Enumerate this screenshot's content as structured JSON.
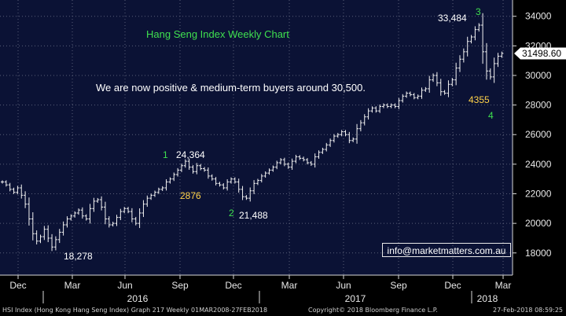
{
  "chart_data": {
    "type": "ohlc",
    "title": "Hang Seng Index Weekly Chart",
    "note": "We are now positive & medium-term buyers around 30,500.",
    "ylim": [
      16500,
      35100
    ],
    "y_ticks": [
      18000,
      20000,
      22000,
      24000,
      26000,
      28000,
      30000,
      32000,
      34000
    ],
    "y_tick_labels": [
      "18000",
      "20000",
      "22000",
      "24000",
      "26000",
      "28000",
      "30000",
      "32000",
      "34000"
    ],
    "last_price_label": "31498.60",
    "last_price": 31498.6,
    "x_month_ticks": [
      "Dec",
      "Mar",
      "Jun",
      "Sep",
      "Dec",
      "Mar",
      "Jun",
      "Sep",
      "Dec",
      "Mar"
    ],
    "x_year_labels": [
      "2016",
      "2017",
      "2018"
    ],
    "series": [
      {
        "name": "HSI Index",
        "values": [
          22800,
          22600,
          22300,
          22100,
          22400,
          21900,
          21300,
          20300,
          19300,
          18800,
          19100,
          19600,
          19000,
          18400,
          18900,
          19400,
          19900,
          20300,
          20500,
          20700,
          20900,
          20500,
          20300,
          21000,
          21500,
          21600,
          21100,
          20300,
          19900,
          20000,
          20400,
          20800,
          21000,
          20800,
          20300,
          20000,
          20700,
          21300,
          21700,
          21900,
          22100,
          22300,
          22400,
          22800,
          23000,
          23300,
          23600,
          23900,
          24200,
          23800,
          23500,
          23900,
          23700,
          23600,
          23200,
          23000,
          22700,
          22600,
          22400,
          22800,
          23000,
          22800,
          22300,
          21800,
          21700,
          22200,
          22700,
          22900,
          23200,
          23400,
          23600,
          23800,
          24100,
          24300,
          24000,
          23800,
          24200,
          24500,
          24400,
          24300,
          24100,
          24000,
          24500,
          24800,
          25000,
          25300,
          25600,
          25900,
          26000,
          26200,
          26000,
          25600,
          25700,
          26400,
          26800,
          27200,
          27600,
          27800,
          27600,
          27900,
          28000,
          27900,
          28000,
          27900,
          28300,
          28600,
          28800,
          28700,
          28500,
          28600,
          29000,
          29100,
          29700,
          30000,
          29500,
          28900,
          28800,
          29400,
          29700,
          30500,
          31100,
          31600,
          32300,
          32600,
          33100,
          33400,
          31600,
          30300,
          29900,
          30800,
          31300,
          31500
        ]
      }
    ],
    "annotations": {
      "wave_1": "1",
      "wave_2": "2",
      "wave_3": "3",
      "wave_4": "4",
      "low_1": "18,278",
      "high_1": "24,364",
      "pts_2876": "2876",
      "low_2": "21,488",
      "high_3": "33,484",
      "pts_4355": "4355"
    }
  },
  "email": "info@marketmatters.com.au",
  "footer": {
    "left": "HSI Index (Hong Kong Hang Seng Index) Graph 217  Weekly 01MAR2008-27FEB2018",
    "mid": "Copyright© 2018 Bloomberg Finance L.P.",
    "right": "27-Feb-2018 08:59:25"
  }
}
